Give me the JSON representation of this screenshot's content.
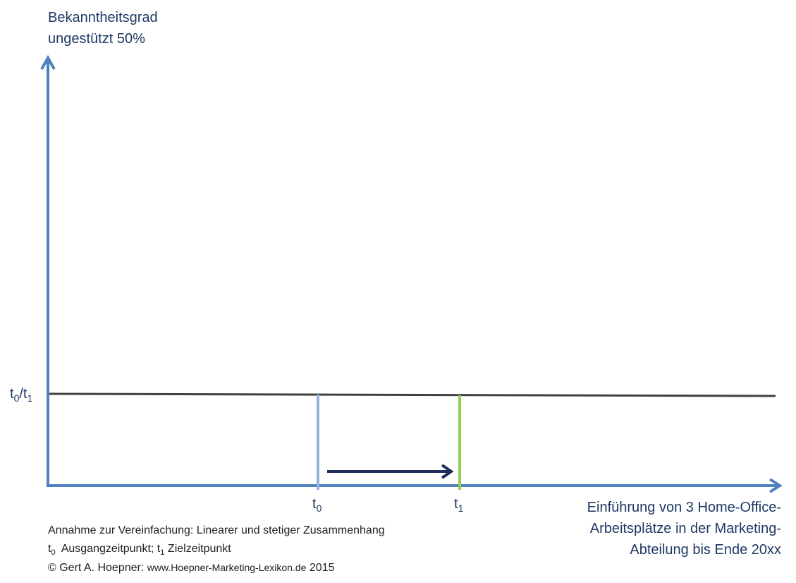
{
  "y_axis": {
    "label_line1": "Bekanntheitsgrad",
    "label_line2": "ungestützt 50%"
  },
  "level": {
    "t_main": "t",
    "sub0": "0",
    "slash": "/t",
    "sub1": "1"
  },
  "x_axis": {
    "label_line1": "Einführung von 3 Home-Office-",
    "label_line2": "Arbeitsplätze in der Marketing-",
    "label_line3": "Abteilung bis Ende 20xx",
    "tick_t0_main": "t",
    "tick_t0_sub": "0",
    "tick_t1_main": "t",
    "tick_t1_sub": "1"
  },
  "notes": {
    "line1": "Annahme zur Vereinfachung: Linearer und stetiger Zusammenhang",
    "line2_t": "t",
    "line2_sub0": "0",
    "line2_a": "  Ausgangzeitpunkt; t",
    "line2_sub1": "1",
    "line2_b": " Zielzeitpunkt",
    "line3_a": "© Gert A. Hoepner: ",
    "line3_url": "www.Hoepner-Marketing-Lexikon.de",
    "line3_b": " 2015"
  },
  "colors": {
    "axis": "#4f81bd",
    "level_line": "#404040",
    "t0_marker": "#95b3e0",
    "t1_marker": "#92d050",
    "arrow": "#1f2d5a",
    "text": "#1f3864"
  }
}
